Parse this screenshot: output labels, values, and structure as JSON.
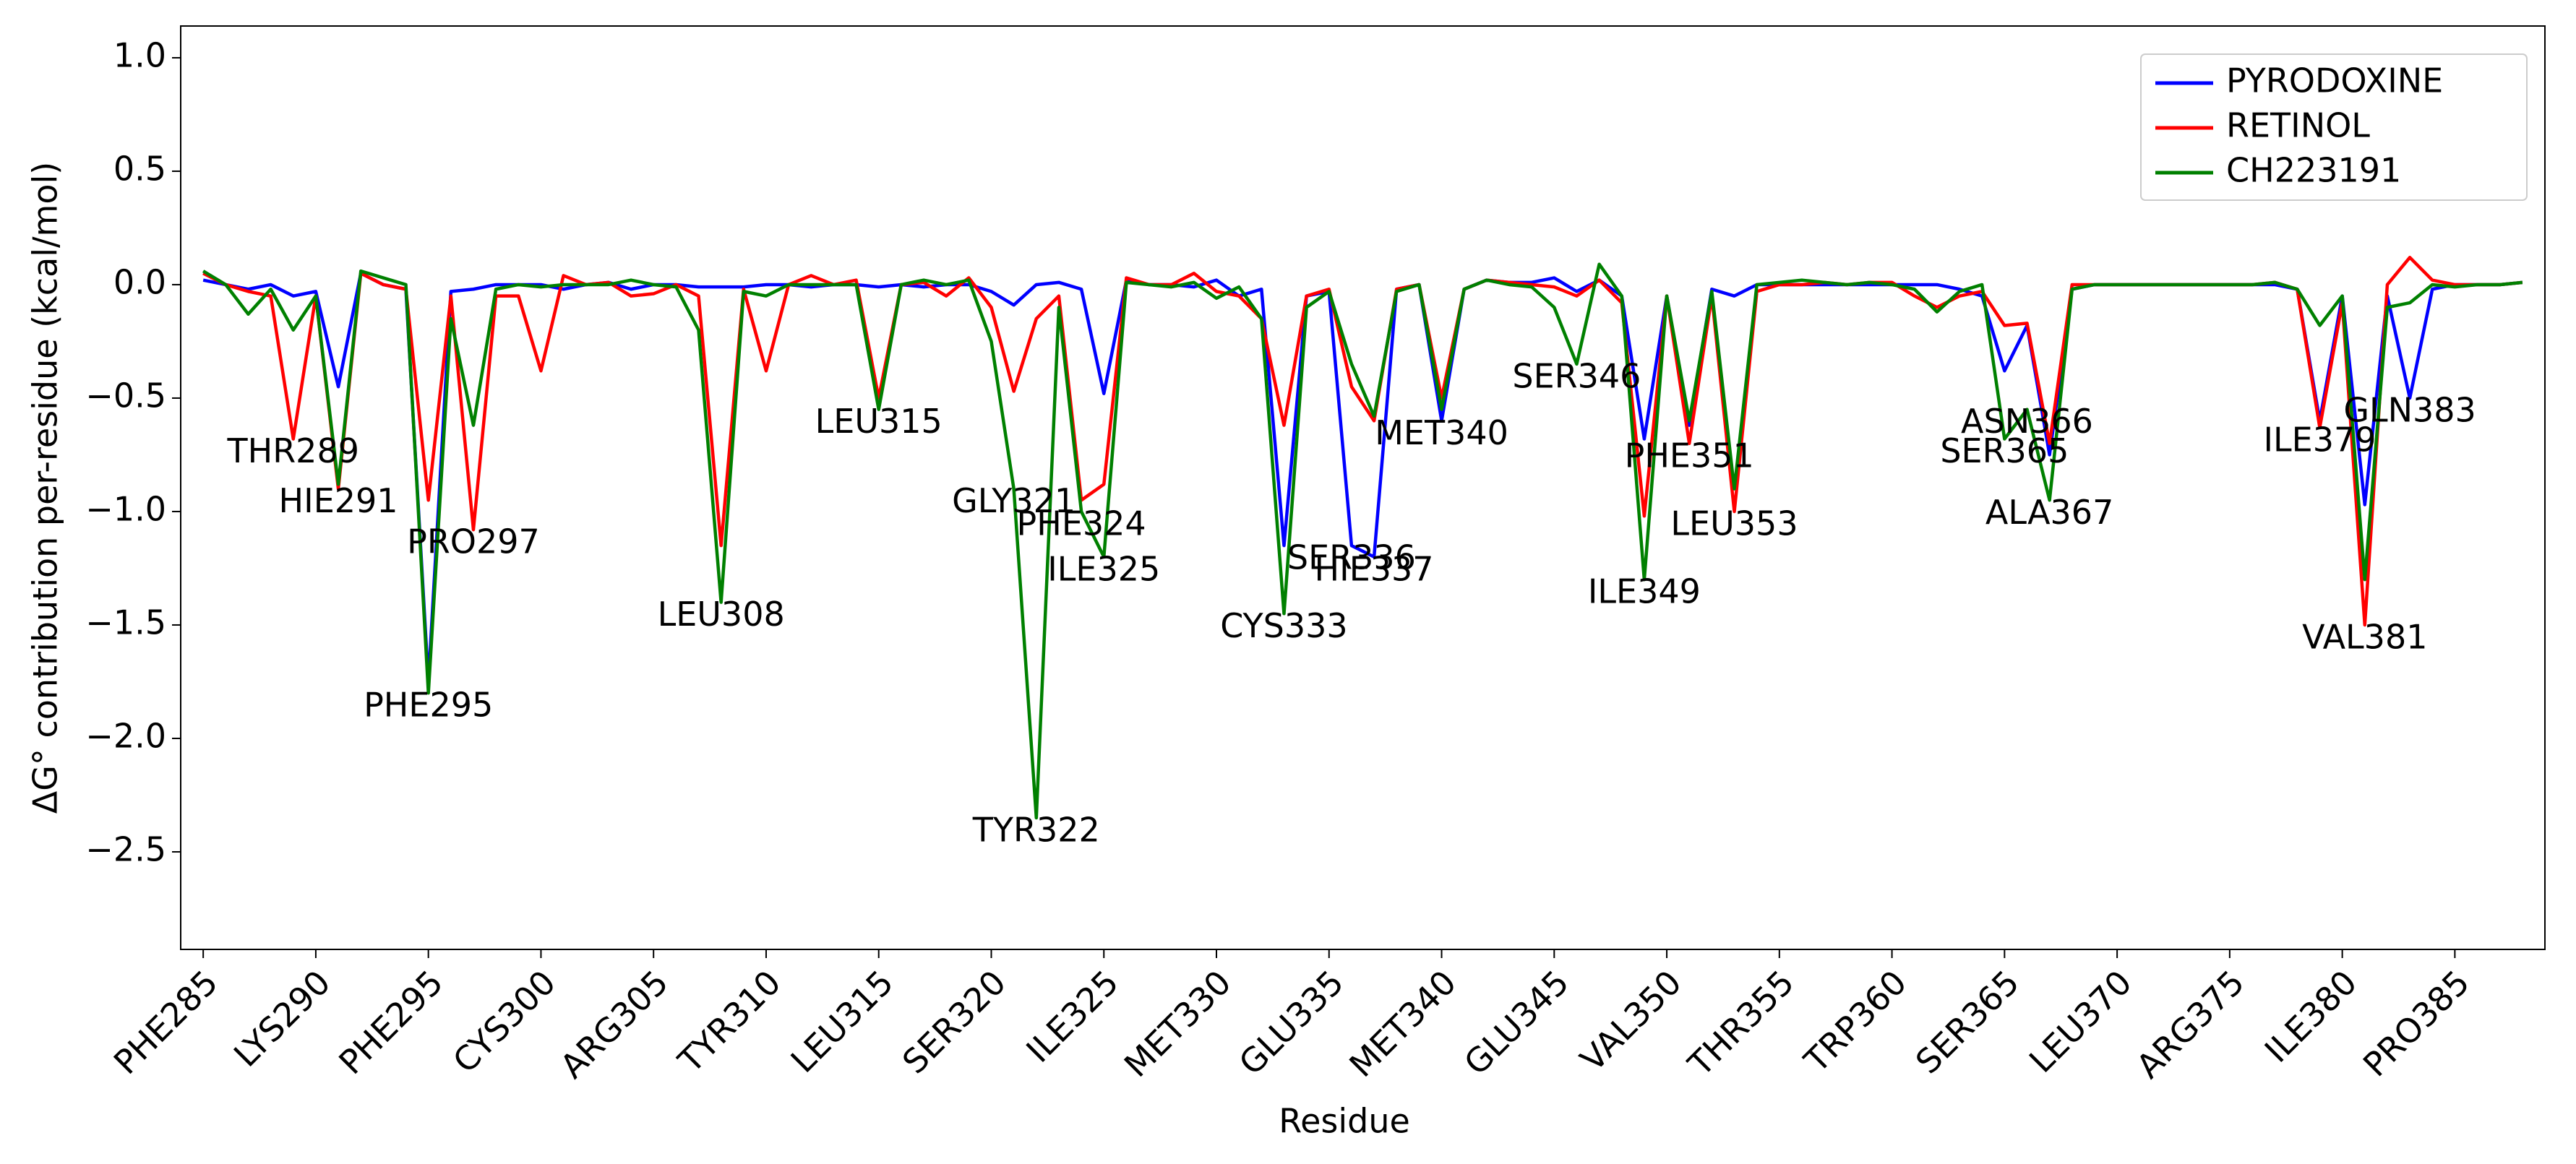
{
  "chart_data": {
    "type": "line",
    "x_label": "Residue",
    "y_label": "ΔG° contribution per-residue (kcal/mol)",
    "x": [
      285,
      286,
      287,
      288,
      289,
      290,
      291,
      292,
      293,
      294,
      295,
      296,
      297,
      298,
      299,
      300,
      301,
      302,
      303,
      304,
      305,
      306,
      307,
      308,
      309,
      310,
      311,
      312,
      313,
      314,
      315,
      316,
      317,
      318,
      319,
      320,
      321,
      322,
      323,
      324,
      325,
      326,
      327,
      328,
      329,
      330,
      331,
      332,
      333,
      334,
      335,
      336,
      337,
      338,
      339,
      340,
      341,
      342,
      343,
      344,
      345,
      346,
      347,
      348,
      349,
      350,
      351,
      352,
      353,
      354,
      355,
      356,
      357,
      358,
      359,
      360,
      361,
      362,
      363,
      364,
      365,
      366,
      367,
      368,
      369,
      370,
      371,
      372,
      373,
      374,
      375,
      376,
      377,
      378,
      379,
      380,
      381,
      382,
      383,
      384,
      385,
      386,
      387,
      388
    ],
    "series": [
      {
        "name": "PYRODOXINE",
        "color": "#0000ff",
        "values": [
          0.02,
          0.0,
          -0.02,
          0.0,
          -0.05,
          -0.03,
          -0.45,
          0.05,
          0.0,
          -0.02,
          -1.75,
          -0.03,
          -0.02,
          0.0,
          0.0,
          0.0,
          -0.02,
          0.0,
          0.01,
          -0.02,
          0.0,
          0.0,
          -0.01,
          -0.01,
          -0.01,
          0.0,
          0.0,
          -0.01,
          0.0,
          0.0,
          -0.01,
          0.0,
          -0.01,
          0.0,
          0.0,
          -0.03,
          -0.09,
          0.0,
          0.01,
          -0.02,
          -0.48,
          0.02,
          0.0,
          0.0,
          -0.01,
          0.02,
          -0.05,
          -0.02,
          -1.15,
          -0.05,
          -0.03,
          -1.15,
          -1.2,
          -0.02,
          0.0,
          -0.6,
          -0.02,
          0.02,
          0.01,
          0.01,
          0.03,
          -0.03,
          0.02,
          -0.05,
          -0.68,
          -0.05,
          -0.62,
          -0.02,
          -0.05,
          0.0,
          0.0,
          0.0,
          0.0,
          0.0,
          0.0,
          0.0,
          0.0,
          0.0,
          -0.02,
          -0.05,
          -0.38,
          -0.18,
          -0.75,
          -0.02,
          0.0,
          0.0,
          0.0,
          0.0,
          0.0,
          0.0,
          0.0,
          0.0,
          0.0,
          -0.02,
          -0.6,
          -0.05,
          -0.97,
          -0.05,
          -0.5,
          -0.02,
          0.0,
          0.0,
          0.0,
          0.01
        ]
      },
      {
        "name": "RETINOL",
        "color": "#ff0000",
        "values": [
          0.05,
          0.0,
          -0.03,
          -0.05,
          -0.68,
          -0.05,
          -0.9,
          0.05,
          0.0,
          -0.02,
          -0.95,
          -0.05,
          -1.08,
          -0.05,
          -0.05,
          -0.38,
          0.04,
          0.0,
          0.01,
          -0.05,
          -0.04,
          0.0,
          -0.05,
          -1.15,
          -0.02,
          -0.38,
          0.0,
          0.04,
          0.0,
          0.02,
          -0.5,
          0.0,
          0.01,
          -0.05,
          0.03,
          -0.1,
          -0.47,
          -0.15,
          -0.05,
          -0.95,
          -0.88,
          0.03,
          0.0,
          0.0,
          0.05,
          -0.03,
          -0.05,
          -0.15,
          -0.62,
          -0.05,
          -0.02,
          -0.45,
          -0.6,
          -0.02,
          0.0,
          -0.5,
          -0.02,
          0.02,
          0.01,
          0.0,
          -0.01,
          -0.05,
          0.02,
          -0.08,
          -1.02,
          -0.05,
          -0.7,
          -0.05,
          -1.0,
          -0.03,
          0.0,
          0.0,
          0.01,
          0.0,
          0.01,
          0.01,
          -0.05,
          -0.1,
          -0.05,
          -0.03,
          -0.18,
          -0.17,
          -0.7,
          0.0,
          0.0,
          0.0,
          0.0,
          0.0,
          0.0,
          0.0,
          0.0,
          0.0,
          0.01,
          -0.02,
          -0.63,
          -0.08,
          -1.5,
          0.0,
          0.12,
          0.02,
          0.0,
          0.0,
          0.0,
          0.01
        ]
      },
      {
        "name": "CH223191",
        "color": "#008000",
        "values": [
          0.06,
          0.0,
          -0.13,
          -0.02,
          -0.2,
          -0.05,
          -0.88,
          0.06,
          0.03,
          0.0,
          -1.8,
          -0.15,
          -0.62,
          -0.02,
          0.0,
          -0.01,
          0.0,
          0.0,
          0.0,
          0.02,
          0.0,
          -0.01,
          -0.2,
          -1.4,
          -0.03,
          -0.05,
          0.0,
          0.0,
          0.0,
          0.0,
          -0.55,
          0.0,
          0.02,
          0.0,
          0.02,
          -0.25,
          -0.9,
          -2.35,
          -0.1,
          -1.0,
          -1.2,
          0.01,
          0.0,
          -0.01,
          0.01,
          -0.06,
          -0.01,
          -0.15,
          -1.45,
          -0.1,
          -0.03,
          -0.35,
          -0.58,
          -0.03,
          0.0,
          -0.55,
          -0.02,
          0.02,
          0.0,
          -0.01,
          -0.1,
          -0.35,
          0.09,
          -0.05,
          -1.3,
          -0.05,
          -0.6,
          -0.03,
          -0.9,
          0.0,
          0.01,
          0.02,
          0.01,
          0.0,
          0.01,
          0.0,
          -0.02,
          -0.12,
          -0.03,
          0.0,
          -0.68,
          -0.55,
          -0.95,
          -0.02,
          0.0,
          0.0,
          0.0,
          0.0,
          0.0,
          0.0,
          0.0,
          0.0,
          0.01,
          -0.02,
          -0.18,
          -0.05,
          -1.3,
          -0.1,
          -0.08,
          0.0,
          -0.01,
          0.0,
          0.0,
          0.01
        ]
      }
    ],
    "xlim": [
      284,
      389
    ],
    "ylim": [
      -2.93,
      1.14
    ],
    "xticks": [
      {
        "value": 285,
        "label": "PHE285"
      },
      {
        "value": 290,
        "label": "LYS290"
      },
      {
        "value": 295,
        "label": "PHE295"
      },
      {
        "value": 300,
        "label": "CYS300"
      },
      {
        "value": 305,
        "label": "ARG305"
      },
      {
        "value": 310,
        "label": "TYR310"
      },
      {
        "value": 315,
        "label": "LEU315"
      },
      {
        "value": 320,
        "label": "SER320"
      },
      {
        "value": 325,
        "label": "ILE325"
      },
      {
        "value": 330,
        "label": "MET330"
      },
      {
        "value": 335,
        "label": "GLU335"
      },
      {
        "value": 340,
        "label": "MET340"
      },
      {
        "value": 345,
        "label": "GLU345"
      },
      {
        "value": 350,
        "label": "VAL350"
      },
      {
        "value": 355,
        "label": "THR355"
      },
      {
        "value": 360,
        "label": "TRP360"
      },
      {
        "value": 365,
        "label": "SER365"
      },
      {
        "value": 370,
        "label": "LEU370"
      },
      {
        "value": 375,
        "label": "ARG375"
      },
      {
        "value": 380,
        "label": "ILE380"
      },
      {
        "value": 385,
        "label": "PRO385"
      }
    ],
    "yticks": [
      {
        "value": -2.5,
        "label": "−2.5"
      },
      {
        "value": -2.0,
        "label": "−2.0"
      },
      {
        "value": -1.5,
        "label": "−1.5"
      },
      {
        "value": -1.0,
        "label": "−1.0"
      },
      {
        "value": -0.5,
        "label": "−0.5"
      },
      {
        "value": 0,
        "label": "0.0"
      },
      0.5,
      {
        "value": 1.0,
        "label": "1.0"
      }
    ],
    "legend": "upper right",
    "annotations": [
      {
        "text": "THR289",
        "x": 289
      },
      {
        "text": "HIE291",
        "x": 291
      },
      {
        "text": "PHE295",
        "x": 295
      },
      {
        "text": "PRO297",
        "x": 297
      },
      {
        "text": "LEU308",
        "x": 308
      },
      {
        "text": "LEU315",
        "x": 315
      },
      {
        "text": "GLY321",
        "x": 321
      },
      {
        "text": "TYR322",
        "x": 322
      },
      {
        "text": "PHE324",
        "x": 324
      },
      {
        "text": "ILE325",
        "x": 325
      },
      {
        "text": "CYS333",
        "x": 333
      },
      {
        "text": "SER336",
        "x": 336
      },
      {
        "text": "HIE337",
        "x": 337
      },
      {
        "text": "MET340",
        "x": 340
      },
      {
        "text": "SER346",
        "x": 346
      },
      {
        "text": "ILE349",
        "x": 349
      },
      {
        "text": "PHE351",
        "x": 351
      },
      {
        "text": "LEU353",
        "x": 353
      },
      {
        "text": "SER365",
        "x": 365
      },
      {
        "text": "ASN366",
        "x": 366
      },
      {
        "text": "ALA367",
        "x": 367
      },
      {
        "text": "ILE379",
        "x": 379
      },
      {
        "text": "VAL381",
        "x": 381
      },
      {
        "text": "GLN383",
        "x": 383
      }
    ]
  }
}
